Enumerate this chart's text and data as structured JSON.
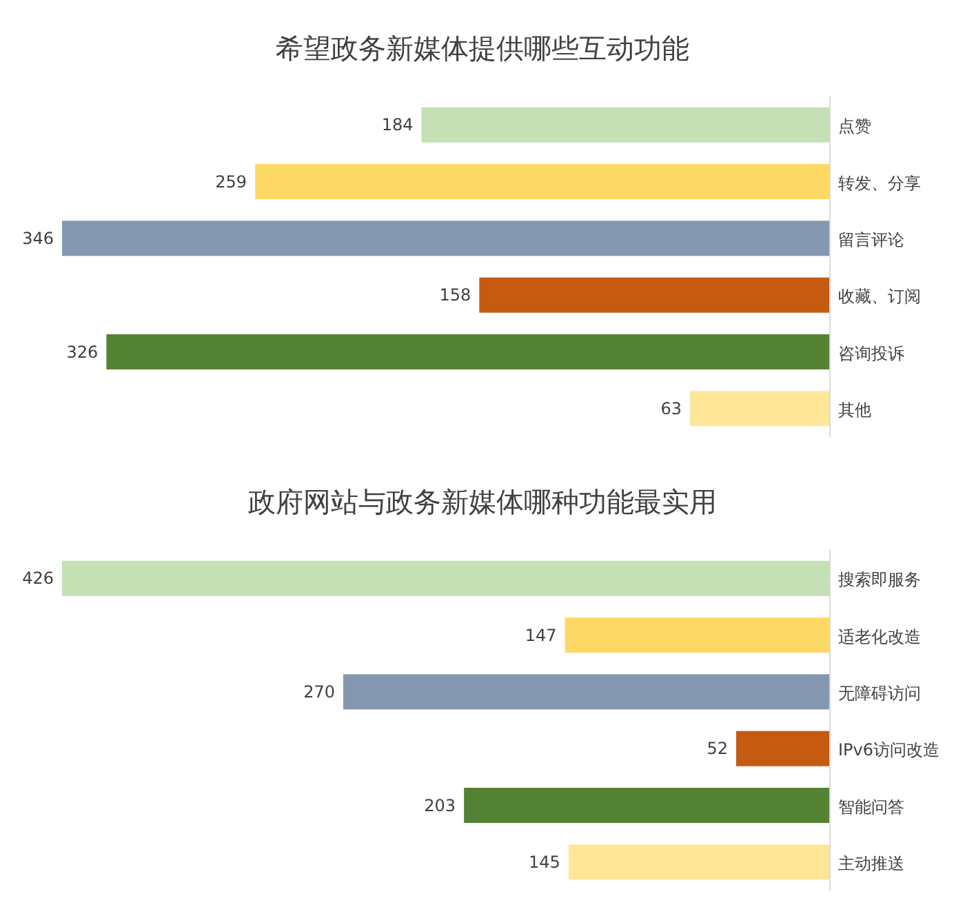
{
  "chart_data": [
    {
      "type": "bar",
      "orientation": "horizontal",
      "title": "希望政务新媒体提供哪些互动功能",
      "categories": [
        "点赞",
        "转发、分享",
        "留言评论",
        "收藏、订阅",
        "咨询投诉",
        "其他"
      ],
      "values": [
        184,
        259,
        346,
        158,
        326,
        63
      ],
      "colors": [
        "#c5e0b4",
        "#ffd966",
        "#8497b0",
        "#c55a11",
        "#548235",
        "#ffe699"
      ],
      "data_labels": true
    },
    {
      "type": "bar",
      "orientation": "horizontal",
      "title": "政府网站与政务新媒体哪种功能最实用",
      "categories": [
        "搜索即服务",
        "适老化改造",
        "无障碍访问",
        "IPv6访问改造",
        "智能问答",
        "主动推送"
      ],
      "values": [
        426,
        147,
        270,
        52,
        203,
        145
      ],
      "colors": [
        "#c5e0b4",
        "#ffd966",
        "#8497b0",
        "#c55a11",
        "#548235",
        "#ffe699"
      ],
      "data_labels": true
    }
  ]
}
